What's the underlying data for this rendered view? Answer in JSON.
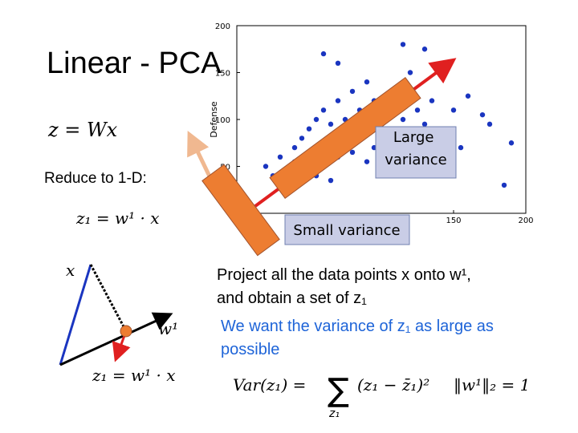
{
  "title": "Linear - PCA",
  "equation": "z = Wx",
  "reduce_label": "Reduce to 1-D:",
  "projection_equation": "z₁ = w¹ · x",
  "diagram": {
    "x_label": "x",
    "w_label": "w¹",
    "z_label": "z₁ = w¹ · x"
  },
  "body": {
    "line1": "Project all the data points x onto w¹,",
    "line2": "and obtain a set of z₁",
    "goal1": "We want the variance of z₁ as large as",
    "goal2": "possible"
  },
  "formula": {
    "lhs": "Var(z₁) =",
    "sum": "∑",
    "sum_index": "z₁",
    "term": "(z₁ − z̄₁)²",
    "constraint": "‖w¹‖₂ = 1"
  },
  "chart_data": {
    "type": "scatter",
    "ylabel": "Defense",
    "color": "#1a35c0",
    "x": [
      20,
      25,
      30,
      35,
      40,
      40,
      45,
      45,
      50,
      50,
      55,
      55,
      60,
      60,
      60,
      65,
      65,
      70,
      70,
      70,
      75,
      75,
      80,
      80,
      80,
      85,
      85,
      90,
      90,
      95,
      95,
      100,
      100,
      105,
      105,
      110,
      110,
      115,
      120,
      120,
      125,
      130,
      135,
      140,
      145,
      150,
      155,
      160,
      170,
      175,
      185,
      60,
      70,
      55,
      90,
      65,
      115,
      130,
      145,
      120,
      35,
      190
    ],
    "y": [
      50,
      40,
      60,
      45,
      70,
      55,
      50,
      80,
      60,
      90,
      65,
      100,
      70,
      50,
      110,
      80,
      95,
      60,
      85,
      120,
      75,
      100,
      90,
      65,
      130,
      110,
      80,
      95,
      140,
      70,
      120,
      100,
      85,
      115,
      60,
      130,
      90,
      100,
      75,
      150,
      110,
      95,
      120,
      90,
      80,
      110,
      70,
      125,
      105,
      95,
      30,
      170,
      160,
      40,
      55,
      35,
      180,
      175,
      160,
      40,
      30,
      75
    ],
    "xlim": [
      0,
      200
    ],
    "ylim": [
      0,
      200
    ],
    "xticks": [
      150,
      200
    ],
    "yticks": [
      50,
      100,
      150,
      200
    ],
    "annotations": [
      "Large variance",
      "Small variance"
    ]
  }
}
